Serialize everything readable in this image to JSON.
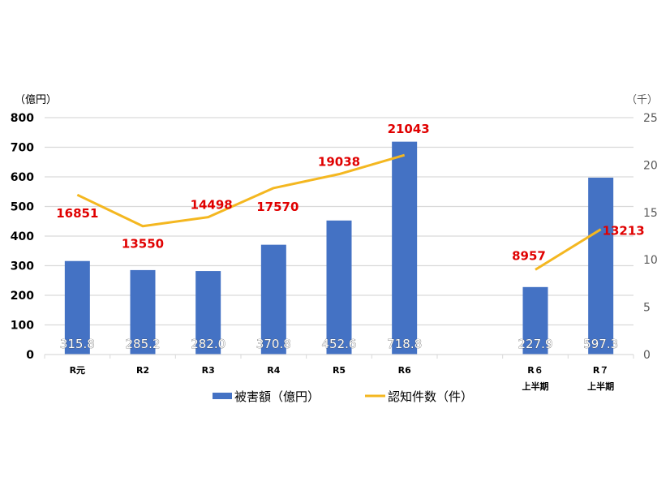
{
  "chart_data": {
    "type": "bar+line",
    "title": "",
    "categories": [
      "R元",
      "R2",
      "R3",
      "R4",
      "R5",
      "R6",
      "",
      "R６\n上半期",
      "R７\n上半期"
    ],
    "series": [
      {
        "name": "被害額（億円）",
        "type": "bar",
        "axis": "left",
        "color": "#4472c4",
        "values": [
          315.8,
          285.2,
          282.0,
          370.8,
          452.6,
          718.8,
          null,
          227.9,
          597.3
        ],
        "labels": [
          "315.8",
          "285.2",
          "282.0",
          "370.8",
          "452.6",
          "718.8",
          "",
          "227.9",
          "597.3"
        ]
      },
      {
        "name": "認知件数（件）",
        "type": "line",
        "axis": "right",
        "color": "#f4b720",
        "values": [
          16851,
          13550,
          14498,
          17570,
          19038,
          21043,
          null,
          8957,
          13213
        ],
        "labels": [
          "16851",
          "13550",
          "14498",
          "17570",
          "19038",
          "21043",
          "",
          "8957",
          "13213"
        ],
        "segments": [
          [
            0,
            5
          ],
          [
            7,
            8
          ]
        ]
      }
    ],
    "y_left": {
      "label": "（億円）",
      "ticks": [
        "0",
        "100",
        "200",
        "300",
        "400",
        "500",
        "600",
        "700",
        "800"
      ],
      "ylim": [
        0,
        800
      ]
    },
    "y_right": {
      "label": "（千）",
      "ticks": [
        "0",
        "5",
        "10",
        "15",
        "20",
        "25"
      ],
      "ylim": [
        0,
        25
      ]
    },
    "grid": true,
    "legend_position": "bottom",
    "label_color": "#e00000"
  },
  "legend": {
    "bar_label": "被害額（億円）",
    "line_label": "認知件数（件）"
  },
  "axis": {
    "left_unit": "（億円）",
    "right_unit": "（千）"
  }
}
